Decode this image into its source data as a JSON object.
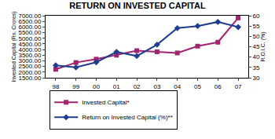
{
  "chart_data": {
    "type": "line",
    "title": "RETURN ON INVESTED CAPITAL",
    "categories": [
      "98",
      "99",
      "00",
      "01",
      "02",
      "03",
      "04",
      "05",
      "06",
      "07"
    ],
    "y_label": "Invested Capital (Rs. Crores)",
    "y2_label": "R.O.I.C. (%)",
    "ylim": [
      1500,
      7000
    ],
    "yticks": [
      {
        "value": 1500,
        "label": "1500.00"
      },
      {
        "value": 2000,
        "label": "2000.00"
      },
      {
        "value": 2500,
        "label": "2500.00"
      },
      {
        "value": 3000,
        "label": "3000.00"
      },
      {
        "value": 3500,
        "label": "3500.00"
      },
      {
        "value": 4000,
        "label": "4000.00"
      },
      {
        "value": 4500,
        "label": "4500.00"
      },
      {
        "value": 5000,
        "label": "5000.00"
      },
      {
        "value": 5500,
        "label": "5500.00"
      },
      {
        "value": 6000,
        "label": "6000.00"
      },
      {
        "value": 6500,
        "label": "6500.00"
      },
      {
        "value": 7000,
        "label": "7000.00"
      }
    ],
    "y2lim": [
      30,
      60
    ],
    "y2ticks": [
      30,
      35,
      40,
      45,
      50,
      55,
      60
    ],
    "grid": false,
    "legend": "bottom",
    "series": [
      {
        "name": "Invested Capital*",
        "color": "#a3246e",
        "marker": "square",
        "line_style": "solid",
        "values": [
          2250,
          2850,
          3150,
          3500,
          3900,
          3800,
          3700,
          4300,
          4650,
          6800
        ]
      },
      {
        "name": "Return on Invested Capital (%)**",
        "color": "#1f3c8f",
        "marker": "diamond",
        "line_style": "solid",
        "axis": "y2",
        "values": [
          36,
          35,
          37.5,
          42.5,
          40.5,
          46,
          54,
          55,
          57,
          54.5
        ]
      }
    ]
  }
}
